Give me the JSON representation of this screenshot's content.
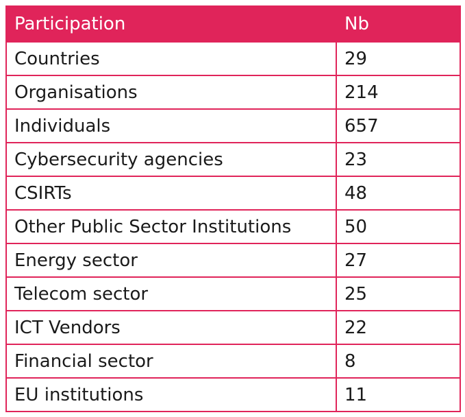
{
  "table": {
    "header": [
      "Participation",
      "Nb"
    ],
    "rows": [
      [
        "Countries",
        29
      ],
      [
        "Organisations",
        214
      ],
      [
        "Individuals",
        657
      ],
      [
        "Cybersecurity agencies",
        23
      ],
      [
        "CSIRTs",
        48
      ],
      [
        "Other Public Sector Institutions",
        50
      ],
      [
        "Energy sector",
        27
      ],
      [
        "Telecom sector",
        25
      ],
      [
        "ICT Vendors",
        22
      ],
      [
        "Financial sector",
        8
      ],
      [
        "EU institutions",
        11
      ]
    ]
  }
}
